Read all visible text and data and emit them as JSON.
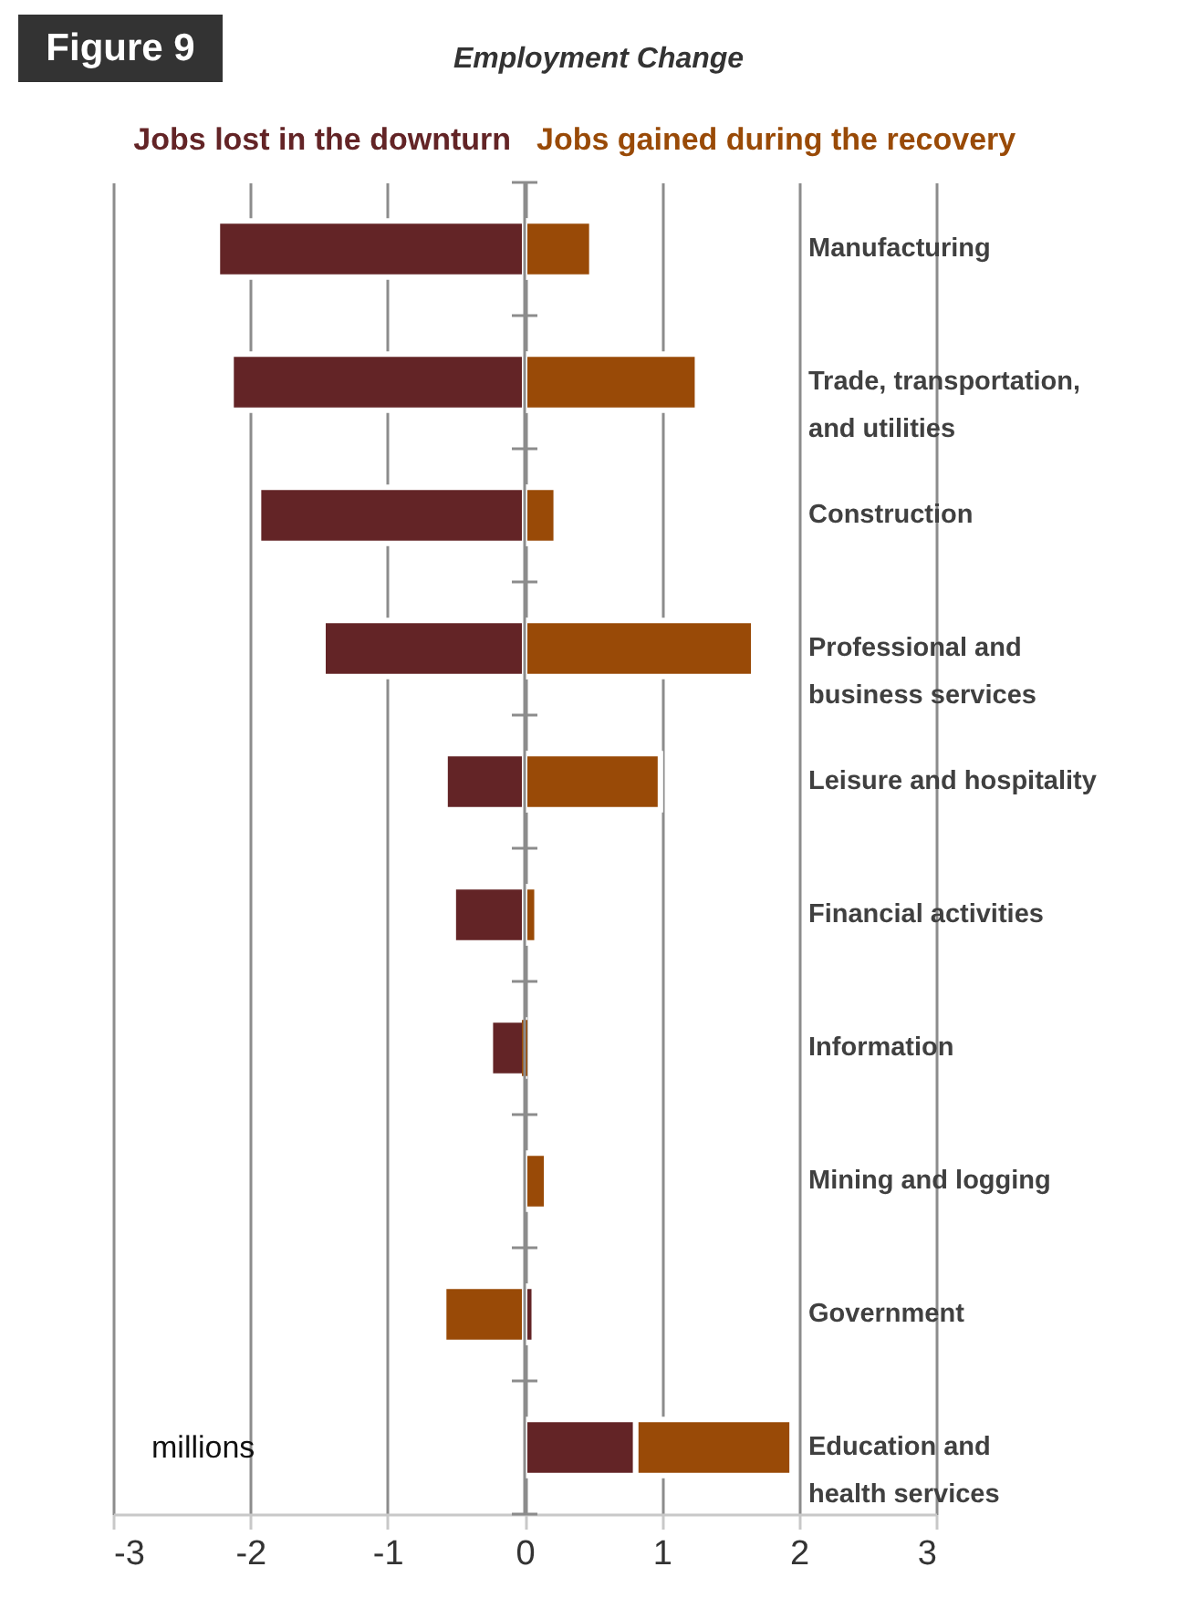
{
  "chart_data": {
    "type": "bar",
    "orientation": "horizontal",
    "stacked": true,
    "title": "Employment Change",
    "annotations": [
      "Figure 9",
      "millions"
    ],
    "categories": [
      "Manufacturing",
      "Trade, transportation, and utilities",
      "Construction",
      "Professional and business services",
      "Leisure and hospitality",
      "Financial activities",
      "Information",
      "Mining and logging",
      "Government",
      "Education and health services"
    ],
    "series": [
      {
        "name": "Jobs lost in the downturn",
        "color": "#632426",
        "values": [
          -2.24,
          -2.14,
          -1.94,
          -1.47,
          -0.58,
          -0.52,
          -0.25,
          0,
          0.07,
          0.81
        ]
      },
      {
        "name": "Jobs gained during the recovery",
        "color": "#994a07",
        "values": [
          0.49,
          1.26,
          0.23,
          1.67,
          0.99,
          0.09,
          0,
          0.16,
          -0.59,
          1.14
        ]
      }
    ],
    "xlim": [
      -3,
      3
    ],
    "xticks": [
      -3,
      -2,
      -1,
      0,
      1,
      2,
      3
    ],
    "grid": "x",
    "legend": "top"
  }
}
